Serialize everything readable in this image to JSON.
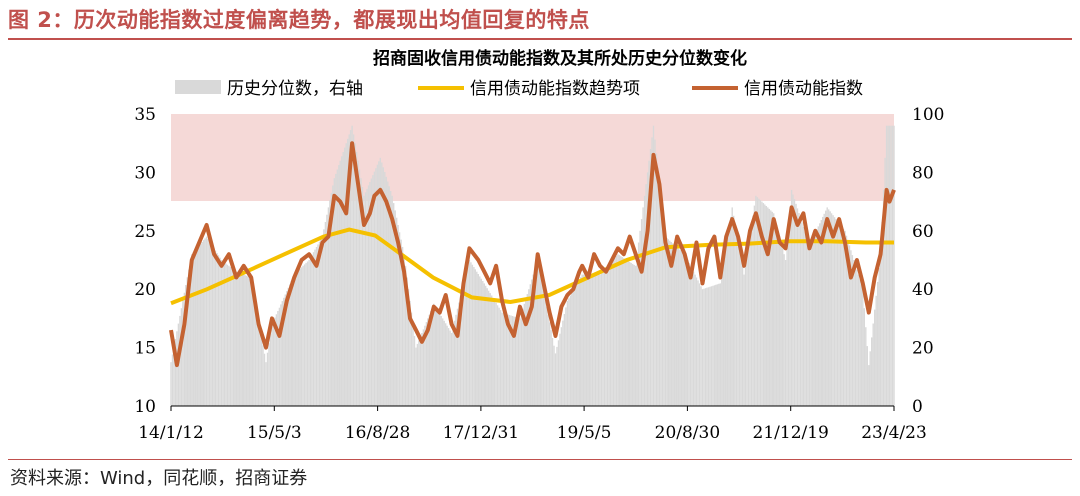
{
  "figure_title": "图 2：历次动能指数过度偏离趋势，都展现出均值回复的特点",
  "source": "资料来源：Wind，同花顺，招商证券",
  "colors": {
    "accent": "#c0504d",
    "index_line": "#c46231",
    "trend_line": "#f5c000",
    "percentile_bars": "#d9d9d9",
    "highlight_zone": "#f5d9d7"
  },
  "chart_data": {
    "type": "line",
    "title": "招商固收信用债动能指数及其所处历史分位数变化",
    "legend": [
      "历史分位数，右轴",
      "信用债动能指数趋势项",
      "信用债动能指数"
    ],
    "legend_position": "top",
    "x_tick_labels": [
      "14/1/12",
      "15/5/3",
      "16/8/28",
      "17/12/31",
      "19/5/5",
      "20/8/30",
      "21/12/19",
      "23/4/23"
    ],
    "x_range": [
      "2014-01-12",
      "2023-05-14"
    ],
    "y_left": {
      "min": 10,
      "max": 35,
      "ticks": [
        10,
        15,
        20,
        25,
        30,
        35
      ]
    },
    "y_right": {
      "min": 0,
      "max": 100,
      "ticks": [
        0,
        20,
        40,
        60,
        80,
        100
      ]
    },
    "highlight_band_left_axis": [
      27.5,
      35
    ],
    "series": [
      {
        "name": "信用债动能指数",
        "axis": "left",
        "type": "line",
        "points": [
          [
            "2014-01-12",
            16.5
          ],
          [
            "2014-02-09",
            13.5
          ],
          [
            "2014-03-16",
            17.0
          ],
          [
            "2014-04-20",
            22.5
          ],
          [
            "2014-05-25",
            24.0
          ],
          [
            "2014-06-29",
            25.5
          ],
          [
            "2014-08-03",
            23.0
          ],
          [
            "2014-09-07",
            22.0
          ],
          [
            "2014-10-12",
            23.0
          ],
          [
            "2014-11-16",
            21.0
          ],
          [
            "2014-12-21",
            22.0
          ],
          [
            "2015-01-25",
            21.0
          ],
          [
            "2015-03-01",
            17.0
          ],
          [
            "2015-04-05",
            15.0
          ],
          [
            "2015-05-03",
            17.5
          ],
          [
            "2015-06-07",
            16.0
          ],
          [
            "2015-07-12",
            19.0
          ],
          [
            "2015-08-16",
            21.0
          ],
          [
            "2015-09-20",
            22.5
          ],
          [
            "2015-10-25",
            23.0
          ],
          [
            "2015-11-29",
            22.0
          ],
          [
            "2015-12-27",
            24.0
          ],
          [
            "2016-01-24",
            24.5
          ],
          [
            "2016-02-21",
            28.0
          ],
          [
            "2016-03-20",
            27.5
          ],
          [
            "2016-04-17",
            26.5
          ],
          [
            "2016-05-15",
            32.5
          ],
          [
            "2016-06-12",
            29.0
          ],
          [
            "2016-07-10",
            25.5
          ],
          [
            "2016-08-07",
            26.5
          ],
          [
            "2016-08-28",
            28.0
          ],
          [
            "2016-09-25",
            28.5
          ],
          [
            "2016-10-23",
            27.5
          ],
          [
            "2016-11-20",
            26.0
          ],
          [
            "2016-12-18",
            24.0
          ],
          [
            "2017-01-15",
            21.5
          ],
          [
            "2017-02-12",
            17.5
          ],
          [
            "2017-03-12",
            16.5
          ],
          [
            "2017-04-09",
            15.5
          ],
          [
            "2017-05-07",
            16.5
          ],
          [
            "2017-06-04",
            18.5
          ],
          [
            "2017-07-02",
            18.0
          ],
          [
            "2017-07-30",
            19.5
          ],
          [
            "2017-08-27",
            17.0
          ],
          [
            "2017-09-24",
            16.0
          ],
          [
            "2017-10-22",
            20.5
          ],
          [
            "2017-11-19",
            23.5
          ],
          [
            "2017-12-31",
            22.5
          ],
          [
            "2018-01-28",
            21.5
          ],
          [
            "2018-02-25",
            20.5
          ],
          [
            "2018-03-25",
            22.0
          ],
          [
            "2018-04-22",
            19.0
          ],
          [
            "2018-05-20",
            17.0
          ],
          [
            "2018-06-17",
            16.0
          ],
          [
            "2018-07-15",
            18.5
          ],
          [
            "2018-08-12",
            17.0
          ],
          [
            "2018-09-09",
            18.5
          ],
          [
            "2018-10-07",
            23.0
          ],
          [
            "2018-11-04",
            20.5
          ],
          [
            "2018-12-02",
            18.0
          ],
          [
            "2018-12-30",
            16.0
          ],
          [
            "2019-01-27",
            18.5
          ],
          [
            "2019-02-24",
            19.5
          ],
          [
            "2019-03-24",
            20.0
          ],
          [
            "2019-04-21",
            21.5
          ],
          [
            "2019-05-05",
            22.0
          ],
          [
            "2019-06-02",
            21.0
          ],
          [
            "2019-06-30",
            23.0
          ],
          [
            "2019-07-28",
            22.0
          ],
          [
            "2019-08-25",
            21.5
          ],
          [
            "2019-09-22",
            22.5
          ],
          [
            "2019-10-20",
            23.5
          ],
          [
            "2019-11-17",
            23.0
          ],
          [
            "2019-12-15",
            24.5
          ],
          [
            "2020-01-12",
            23.0
          ],
          [
            "2020-02-09",
            21.5
          ],
          [
            "2020-03-08",
            25.0
          ],
          [
            "2020-04-05",
            31.5
          ],
          [
            "2020-05-03",
            29.0
          ],
          [
            "2020-05-31",
            24.0
          ],
          [
            "2020-06-28",
            22.0
          ],
          [
            "2020-07-26",
            24.5
          ],
          [
            "2020-08-30",
            23.0
          ],
          [
            "2020-09-27",
            21.0
          ],
          [
            "2020-10-25",
            24.0
          ],
          [
            "2020-11-22",
            20.5
          ],
          [
            "2020-12-20",
            23.5
          ],
          [
            "2021-01-17",
            24.5
          ],
          [
            "2021-02-14",
            21.0
          ],
          [
            "2021-03-14",
            24.5
          ],
          [
            "2021-04-11",
            26.0
          ],
          [
            "2021-05-09",
            24.5
          ],
          [
            "2021-06-06",
            22.0
          ],
          [
            "2021-07-04",
            25.0
          ],
          [
            "2021-08-01",
            26.5
          ],
          [
            "2021-08-29",
            24.5
          ],
          [
            "2021-09-26",
            23.0
          ],
          [
            "2021-10-24",
            26.0
          ],
          [
            "2021-11-21",
            24.0
          ],
          [
            "2021-12-19",
            23.5
          ],
          [
            "2022-01-16",
            27.0
          ],
          [
            "2022-02-13",
            25.5
          ],
          [
            "2022-03-13",
            26.5
          ],
          [
            "2022-04-10",
            23.5
          ],
          [
            "2022-05-08",
            25.0
          ],
          [
            "2022-06-05",
            24.0
          ],
          [
            "2022-07-03",
            26.0
          ],
          [
            "2022-07-31",
            24.5
          ],
          [
            "2022-08-28",
            26.0
          ],
          [
            "2022-09-25",
            24.0
          ],
          [
            "2022-10-23",
            21.0
          ],
          [
            "2022-11-20",
            22.5
          ],
          [
            "2022-12-18",
            20.5
          ],
          [
            "2023-01-15",
            18.0
          ],
          [
            "2023-02-12",
            21.0
          ],
          [
            "2023-03-12",
            23.0
          ],
          [
            "2023-04-09",
            28.5
          ],
          [
            "2023-04-23",
            27.5
          ],
          [
            "2023-05-14",
            28.5
          ]
        ]
      },
      {
        "name": "信用债动能指数趋势项",
        "axis": "left",
        "type": "line",
        "points": [
          [
            "2014-01-12",
            18.8
          ],
          [
            "2014-07-01",
            20.0
          ],
          [
            "2015-01-01",
            21.5
          ],
          [
            "2015-07-01",
            23.0
          ],
          [
            "2016-01-01",
            24.5
          ],
          [
            "2016-05-01",
            25.1
          ],
          [
            "2016-09-01",
            24.6
          ],
          [
            "2017-01-01",
            23.0
          ],
          [
            "2017-06-01",
            21.0
          ],
          [
            "2017-12-01",
            19.3
          ],
          [
            "2018-06-01",
            18.9
          ],
          [
            "2018-12-01",
            19.5
          ],
          [
            "2019-06-01",
            21.0
          ],
          [
            "2019-12-01",
            22.5
          ],
          [
            "2020-06-01",
            23.6
          ],
          [
            "2021-01-01",
            23.8
          ],
          [
            "2021-07-01",
            23.9
          ],
          [
            "2022-01-01",
            24.1
          ],
          [
            "2022-07-01",
            24.1
          ],
          [
            "2023-01-01",
            24.0
          ],
          [
            "2023-05-14",
            24.0
          ]
        ]
      },
      {
        "name": "历史分位数，右轴",
        "axis": "right",
        "type": "bar",
        "points": [
          [
            "2014-01-12",
            15
          ],
          [
            "2014-04-20",
            52
          ],
          [
            "2014-06-29",
            58
          ],
          [
            "2014-09-07",
            50
          ],
          [
            "2014-11-16",
            46
          ],
          [
            "2015-01-25",
            44
          ],
          [
            "2015-04-05",
            15
          ],
          [
            "2015-05-03",
            28
          ],
          [
            "2015-08-16",
            45
          ],
          [
            "2015-10-25",
            50
          ],
          [
            "2015-12-27",
            58
          ],
          [
            "2016-02-21",
            78
          ],
          [
            "2016-05-15",
            96
          ],
          [
            "2016-07-10",
            72
          ],
          [
            "2016-09-25",
            85
          ],
          [
            "2016-11-20",
            72
          ],
          [
            "2017-01-15",
            52
          ],
          [
            "2017-03-12",
            20
          ],
          [
            "2017-06-04",
            35
          ],
          [
            "2017-08-27",
            25
          ],
          [
            "2017-11-19",
            50
          ],
          [
            "2018-01-28",
            42
          ],
          [
            "2018-04-22",
            32
          ],
          [
            "2018-07-15",
            30
          ],
          [
            "2018-10-07",
            50
          ],
          [
            "2018-12-30",
            18
          ],
          [
            "2019-02-24",
            36
          ],
          [
            "2019-05-05",
            45
          ],
          [
            "2019-07-28",
            45
          ],
          [
            "2019-10-20",
            52
          ],
          [
            "2020-01-12",
            48
          ],
          [
            "2020-04-05",
            96
          ],
          [
            "2020-05-31",
            58
          ],
          [
            "2020-08-30",
            52
          ],
          [
            "2020-11-22",
            40
          ],
          [
            "2021-02-14",
            42
          ],
          [
            "2021-04-11",
            68
          ],
          [
            "2021-06-06",
            45
          ],
          [
            "2021-08-01",
            72
          ],
          [
            "2021-10-24",
            66
          ],
          [
            "2021-12-19",
            50
          ],
          [
            "2022-01-16",
            74
          ],
          [
            "2022-04-10",
            55
          ],
          [
            "2022-07-03",
            68
          ],
          [
            "2022-09-25",
            60
          ],
          [
            "2022-12-18",
            40
          ],
          [
            "2023-01-15",
            14
          ],
          [
            "2023-03-12",
            52
          ],
          [
            "2023-04-09",
            96
          ],
          [
            "2023-05-14",
            96
          ]
        ]
      }
    ]
  }
}
